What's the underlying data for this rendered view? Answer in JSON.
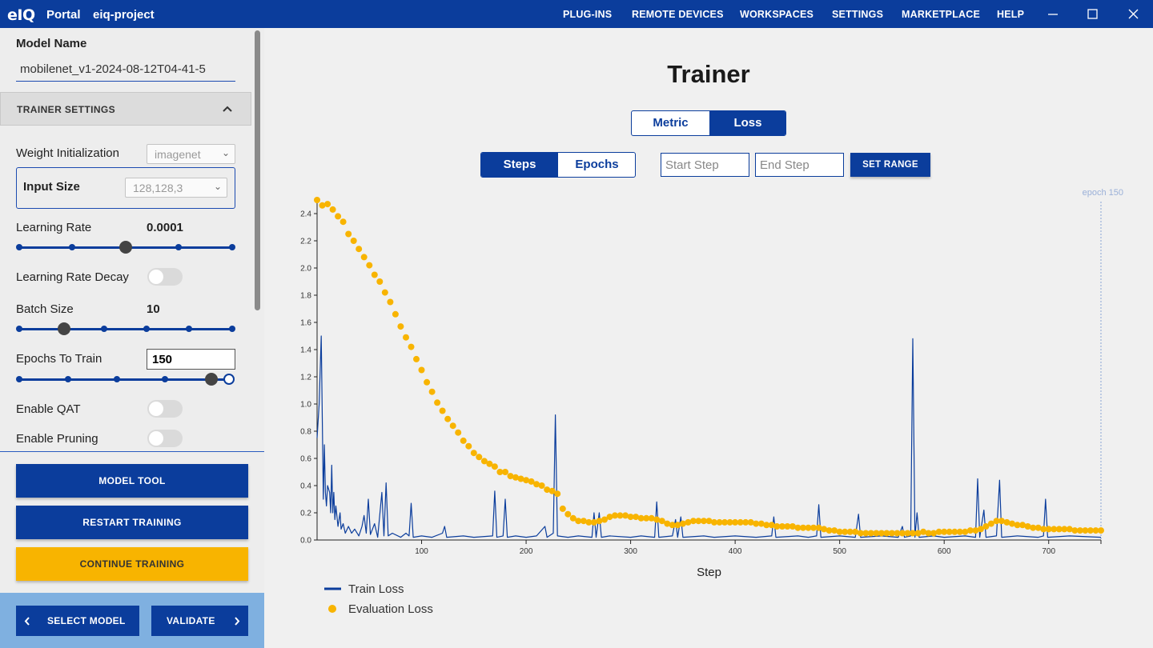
{
  "topbar": {
    "logo": "eIQ",
    "portal": "Portal",
    "project": "eiq-project",
    "nav": [
      "PLUG-INS",
      "REMOTE DEVICES",
      "WORKSPACES",
      "SETTINGS",
      "MARKETPLACE",
      "HELP"
    ],
    "icons": [
      "minimize-icon",
      "maximize-icon",
      "close-icon"
    ]
  },
  "sidebar": {
    "model_name_label": "Model Name",
    "model_name_value": "mobilenet_v1-2024-08-12T04-41-5",
    "section_title": "TRAINER SETTINGS",
    "weight_init_label": "Weight Initialization",
    "weight_init_value": "imagenet",
    "input_size_label": "Input Size",
    "input_size_value": "128,128,3",
    "learning_rate_label": "Learning Rate",
    "learning_rate_value": "0.0001",
    "learning_rate_slider_index": 2,
    "learning_rate_decay_label": "Learning Rate Decay",
    "batch_size_label": "Batch Size",
    "batch_size_value": "10",
    "batch_size_slider_index": 1,
    "epochs_label": "Epochs To Train",
    "epochs_value": "150",
    "enable_qat_label": "Enable QAT",
    "enable_pruning_label": "Enable Pruning",
    "toggles": {
      "learning_rate_decay": false,
      "enable_qat": false,
      "enable_pruning": false
    },
    "buttons": {
      "model_tool": "MODEL TOOL",
      "restart_training": "RESTART TRAINING",
      "continue_training": "CONTINUE TRAINING"
    },
    "footer": {
      "select_model": "SELECT MODEL",
      "validate": "VALIDATE"
    }
  },
  "main": {
    "title": "Trainer",
    "view_tabs": [
      {
        "label": "Metric",
        "active": false
      },
      {
        "label": "Loss",
        "active": true
      }
    ],
    "unit_tabs": [
      {
        "label": "Steps",
        "active": true
      },
      {
        "label": "Epochs",
        "active": false
      }
    ],
    "start_step_placeholder": "Start Step",
    "end_step_placeholder": "End Step",
    "set_range_label": "SET RANGE"
  },
  "colors": {
    "primary": "#0b3d9c",
    "accent": "#f8b400",
    "sidebar_bg": "#ededed",
    "footer_bg": "#7fb0e0"
  },
  "chart_data": {
    "type": "line",
    "xlabel": "Step",
    "ylabel": "",
    "xlim": [
      0,
      750
    ],
    "ylim": [
      0,
      2.5
    ],
    "x_ticks": [
      100,
      200,
      300,
      400,
      500,
      600,
      700
    ],
    "y_ticks": [
      "0.0",
      "0.2",
      "0.4",
      "0.6",
      "0.8",
      "1.0",
      "1.2",
      "1.4",
      "1.6",
      "1.8",
      "2.0",
      "2.2",
      "2.4"
    ],
    "annotation": {
      "text": "epoch 150",
      "x": 750
    },
    "legend": [
      "Train Loss",
      "Evaluation Loss"
    ],
    "series": [
      {
        "name": "Train Loss",
        "style": "line",
        "color": "#0b3d9c",
        "points": [
          [
            0,
            0.75
          ],
          [
            2,
            1.0
          ],
          [
            4,
            1.5
          ],
          [
            5,
            0.9
          ],
          [
            6,
            0.3
          ],
          [
            7,
            0.7
          ],
          [
            8,
            0.35
          ],
          [
            9,
            0.25
          ],
          [
            10,
            0.4
          ],
          [
            12,
            0.35
          ],
          [
            13,
            0.2
          ],
          [
            14,
            0.55
          ],
          [
            15,
            0.2
          ],
          [
            16,
            0.35
          ],
          [
            17,
            0.15
          ],
          [
            18,
            0.25
          ],
          [
            20,
            0.1
          ],
          [
            22,
            0.2
          ],
          [
            23,
            0.08
          ],
          [
            25,
            0.12
          ],
          [
            27,
            0.05
          ],
          [
            30,
            0.1
          ],
          [
            33,
            0.05
          ],
          [
            36,
            0.08
          ],
          [
            40,
            0.03
          ],
          [
            43,
            0.1
          ],
          [
            45,
            0.18
          ],
          [
            47,
            0.05
          ],
          [
            49,
            0.3
          ],
          [
            51,
            0.04
          ],
          [
            55,
            0.12
          ],
          [
            58,
            0.02
          ],
          [
            62,
            0.35
          ],
          [
            64,
            0.03
          ],
          [
            66,
            0.42
          ],
          [
            68,
            0.03
          ],
          [
            72,
            0.05
          ],
          [
            80,
            0.02
          ],
          [
            85,
            0.05
          ],
          [
            88,
            0.03
          ],
          [
            90,
            0.27
          ],
          [
            92,
            0.02
          ],
          [
            100,
            0.03
          ],
          [
            110,
            0.02
          ],
          [
            120,
            0.05
          ],
          [
            122,
            0.1
          ],
          [
            124,
            0.02
          ],
          [
            140,
            0.03
          ],
          [
            150,
            0.02
          ],
          [
            168,
            0.03
          ],
          [
            170,
            0.36
          ],
          [
            172,
            0.02
          ],
          [
            178,
            0.03
          ],
          [
            180,
            0.3
          ],
          [
            182,
            0.02
          ],
          [
            190,
            0.03
          ],
          [
            200,
            0.02
          ],
          [
            210,
            0.03
          ],
          [
            218,
            0.1
          ],
          [
            220,
            0.02
          ],
          [
            226,
            0.05
          ],
          [
            228,
            0.92
          ],
          [
            230,
            0.03
          ],
          [
            240,
            0.02
          ],
          [
            250,
            0.03
          ],
          [
            263,
            0.02
          ],
          [
            265,
            0.2
          ],
          [
            267,
            0.02
          ],
          [
            270,
            0.2
          ],
          [
            272,
            0.02
          ],
          [
            280,
            0.03
          ],
          [
            300,
            0.02
          ],
          [
            310,
            0.03
          ],
          [
            323,
            0.02
          ],
          [
            325,
            0.28
          ],
          [
            327,
            0.02
          ],
          [
            340,
            0.03
          ],
          [
            343,
            0.15
          ],
          [
            345,
            0.02
          ],
          [
            348,
            0.17
          ],
          [
            350,
            0.02
          ],
          [
            370,
            0.03
          ],
          [
            380,
            0.02
          ],
          [
            400,
            0.03
          ],
          [
            420,
            0.02
          ],
          [
            435,
            0.03
          ],
          [
            437,
            0.17
          ],
          [
            439,
            0.02
          ],
          [
            460,
            0.03
          ],
          [
            470,
            0.02
          ],
          [
            478,
            0.03
          ],
          [
            480,
            0.26
          ],
          [
            482,
            0.02
          ],
          [
            500,
            0.03
          ],
          [
            515,
            0.02
          ],
          [
            518,
            0.19
          ],
          [
            520,
            0.02
          ],
          [
            540,
            0.03
          ],
          [
            556,
            0.02
          ],
          [
            560,
            0.1
          ],
          [
            562,
            0.02
          ],
          [
            568,
            0.03
          ],
          [
            570,
            1.48
          ],
          [
            572,
            0.02
          ],
          [
            574,
            0.2
          ],
          [
            576,
            0.02
          ],
          [
            590,
            0.03
          ],
          [
            600,
            0.02
          ],
          [
            620,
            0.03
          ],
          [
            630,
            0.02
          ],
          [
            632,
            0.45
          ],
          [
            634,
            0.02
          ],
          [
            638,
            0.22
          ],
          [
            640,
            0.02
          ],
          [
            650,
            0.03
          ],
          [
            653,
            0.44
          ],
          [
            655,
            0.02
          ],
          [
            670,
            0.03
          ],
          [
            690,
            0.02
          ],
          [
            695,
            0.03
          ],
          [
            697,
            0.3
          ],
          [
            699,
            0.02
          ],
          [
            720,
            0.03
          ],
          [
            750,
            0.02
          ]
        ]
      },
      {
        "name": "Evaluation Loss",
        "style": "dots",
        "color": "#f8b400",
        "points": [
          [
            0,
            2.5
          ],
          [
            5,
            2.46
          ],
          [
            10,
            2.47
          ],
          [
            15,
            2.43
          ],
          [
            20,
            2.38
          ],
          [
            25,
            2.34
          ],
          [
            30,
            2.25
          ],
          [
            35,
            2.2
          ],
          [
            40,
            2.14
          ],
          [
            45,
            2.08
          ],
          [
            50,
            2.02
          ],
          [
            55,
            1.95
          ],
          [
            60,
            1.9
          ],
          [
            65,
            1.82
          ],
          [
            70,
            1.75
          ],
          [
            75,
            1.66
          ],
          [
            80,
            1.57
          ],
          [
            85,
            1.49
          ],
          [
            90,
            1.42
          ],
          [
            95,
            1.33
          ],
          [
            100,
            1.25
          ],
          [
            105,
            1.16
          ],
          [
            110,
            1.09
          ],
          [
            115,
            1.01
          ],
          [
            120,
            0.95
          ],
          [
            125,
            0.89
          ],
          [
            130,
            0.84
          ],
          [
            135,
            0.79
          ],
          [
            140,
            0.73
          ],
          [
            145,
            0.69
          ],
          [
            150,
            0.64
          ],
          [
            155,
            0.61
          ],
          [
            160,
            0.58
          ],
          [
            165,
            0.56
          ],
          [
            170,
            0.54
          ],
          [
            175,
            0.5
          ],
          [
            180,
            0.5
          ],
          [
            185,
            0.47
          ],
          [
            190,
            0.46
          ],
          [
            195,
            0.45
          ],
          [
            200,
            0.44
          ],
          [
            205,
            0.43
          ],
          [
            210,
            0.41
          ],
          [
            215,
            0.4
          ],
          [
            220,
            0.37
          ],
          [
            225,
            0.36
          ],
          [
            230,
            0.34
          ],
          [
            235,
            0.23
          ],
          [
            240,
            0.19
          ],
          [
            245,
            0.16
          ],
          [
            250,
            0.14
          ],
          [
            255,
            0.14
          ],
          [
            260,
            0.13
          ],
          [
            265,
            0.13
          ],
          [
            270,
            0.14
          ],
          [
            275,
            0.15
          ],
          [
            280,
            0.17
          ],
          [
            285,
            0.18
          ],
          [
            290,
            0.18
          ],
          [
            295,
            0.18
          ],
          [
            300,
            0.17
          ],
          [
            305,
            0.17
          ],
          [
            310,
            0.16
          ],
          [
            315,
            0.16
          ],
          [
            320,
            0.16
          ],
          [
            325,
            0.15
          ],
          [
            330,
            0.14
          ],
          [
            335,
            0.12
          ],
          [
            340,
            0.11
          ],
          [
            345,
            0.11
          ],
          [
            350,
            0.12
          ],
          [
            355,
            0.13
          ],
          [
            360,
            0.14
          ],
          [
            365,
            0.14
          ],
          [
            370,
            0.14
          ],
          [
            375,
            0.14
          ],
          [
            380,
            0.13
          ],
          [
            385,
            0.13
          ],
          [
            390,
            0.13
          ],
          [
            395,
            0.13
          ],
          [
            400,
            0.13
          ],
          [
            405,
            0.13
          ],
          [
            410,
            0.13
          ],
          [
            415,
            0.13
          ],
          [
            420,
            0.12
          ],
          [
            425,
            0.12
          ],
          [
            430,
            0.11
          ],
          [
            435,
            0.11
          ],
          [
            440,
            0.1
          ],
          [
            445,
            0.1
          ],
          [
            450,
            0.1
          ],
          [
            455,
            0.1
          ],
          [
            460,
            0.09
          ],
          [
            465,
            0.09
          ],
          [
            470,
            0.09
          ],
          [
            475,
            0.09
          ],
          [
            480,
            0.09
          ],
          [
            485,
            0.08
          ],
          [
            490,
            0.07
          ],
          [
            495,
            0.07
          ],
          [
            500,
            0.06
          ],
          [
            505,
            0.06
          ],
          [
            510,
            0.06
          ],
          [
            515,
            0.06
          ],
          [
            520,
            0.05
          ],
          [
            525,
            0.05
          ],
          [
            530,
            0.05
          ],
          [
            535,
            0.05
          ],
          [
            540,
            0.05
          ],
          [
            545,
            0.05
          ],
          [
            550,
            0.05
          ],
          [
            555,
            0.05
          ],
          [
            560,
            0.05
          ],
          [
            565,
            0.05
          ],
          [
            570,
            0.05
          ],
          [
            575,
            0.05
          ],
          [
            580,
            0.06
          ],
          [
            585,
            0.05
          ],
          [
            590,
            0.05
          ],
          [
            595,
            0.06
          ],
          [
            600,
            0.06
          ],
          [
            605,
            0.06
          ],
          [
            610,
            0.06
          ],
          [
            615,
            0.06
          ],
          [
            620,
            0.06
          ],
          [
            625,
            0.07
          ],
          [
            630,
            0.07
          ],
          [
            635,
            0.08
          ],
          [
            640,
            0.1
          ],
          [
            645,
            0.12
          ],
          [
            650,
            0.14
          ],
          [
            655,
            0.14
          ],
          [
            660,
            0.13
          ],
          [
            665,
            0.12
          ],
          [
            670,
            0.11
          ],
          [
            675,
            0.11
          ],
          [
            680,
            0.1
          ],
          [
            685,
            0.09
          ],
          [
            690,
            0.09
          ],
          [
            695,
            0.08
          ],
          [
            700,
            0.08
          ],
          [
            705,
            0.08
          ],
          [
            710,
            0.08
          ],
          [
            715,
            0.08
          ],
          [
            720,
            0.08
          ],
          [
            725,
            0.07
          ],
          [
            730,
            0.07
          ],
          [
            735,
            0.07
          ],
          [
            740,
            0.07
          ],
          [
            745,
            0.07
          ],
          [
            750,
            0.07
          ]
        ]
      }
    ]
  }
}
